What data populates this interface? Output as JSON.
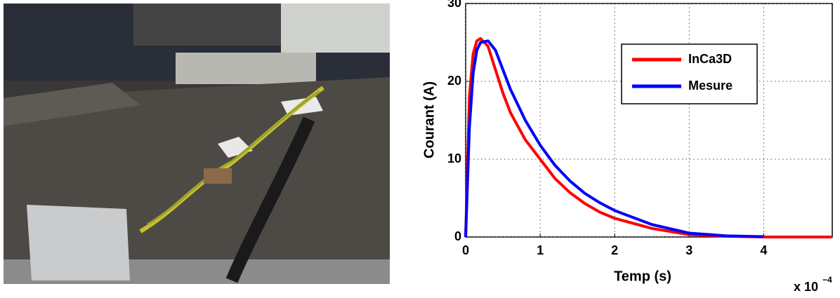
{
  "chart_data": {
    "type": "line",
    "xlabel": "Temp (s)",
    "ylabel": "Courant (A)",
    "x_multiplier": "x 10",
    "x_multiplier_exponent": "−4",
    "x": [
      0,
      0.05,
      0.1,
      0.15,
      0.2,
      0.3,
      0.4,
      0.5,
      0.6,
      0.8,
      1.0,
      1.2,
      1.4,
      1.6,
      1.8,
      2.0,
      2.5,
      3.0,
      3.5,
      4.0,
      4.5,
      4.92
    ],
    "series": [
      {
        "name": "InCa3D",
        "color": "#ff0000",
        "values": [
          0,
          18,
          23.5,
          25.2,
          25.5,
          24.5,
          21.5,
          18.5,
          16,
          12.5,
          10,
          7.5,
          5.7,
          4.3,
          3.2,
          2.4,
          1.1,
          0.3,
          0.1,
          0,
          0,
          0
        ]
      },
      {
        "name": "Mesure",
        "color": "#0000ff",
        "values": [
          0,
          14,
          21,
          24,
          25,
          25.2,
          24,
          21.5,
          19,
          15,
          11.8,
          9.2,
          7.2,
          5.6,
          4.4,
          3.4,
          1.6,
          0.5,
          0.15,
          0.05,
          null,
          null
        ]
      }
    ],
    "xlim": [
      0,
      4.92
    ],
    "xticks": [
      0,
      1,
      2,
      3,
      4
    ],
    "ylim": [
      0,
      30
    ],
    "yticks": [
      0,
      10,
      20,
      30
    ],
    "grid": true,
    "legend": "upper right"
  }
}
